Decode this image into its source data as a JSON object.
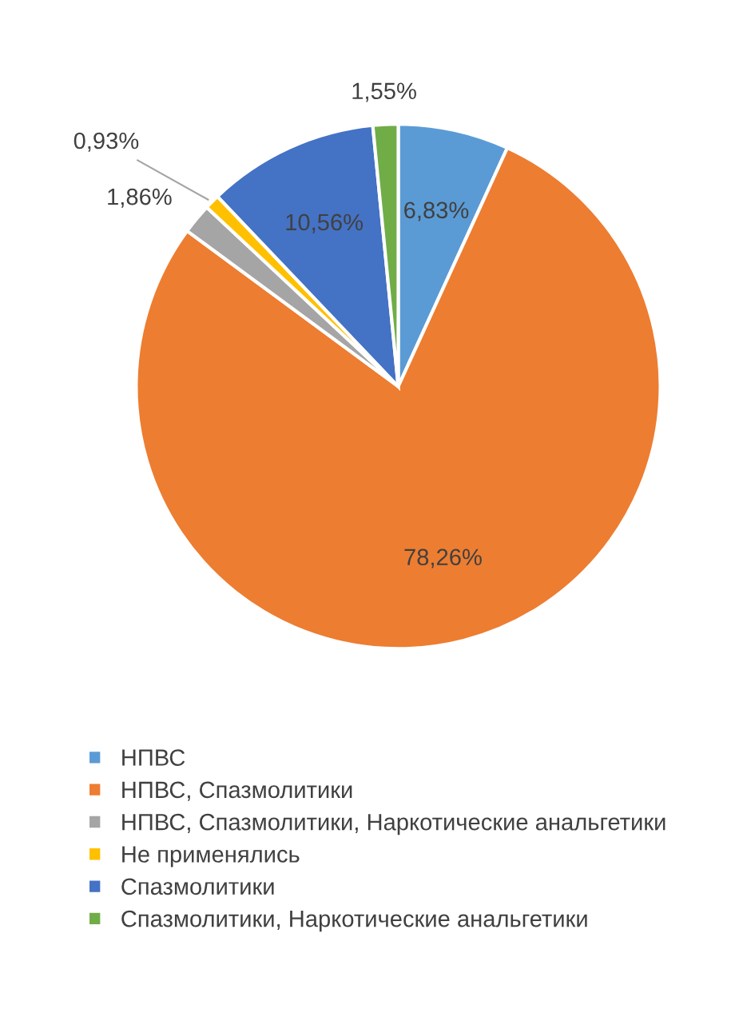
{
  "chart_data": {
    "type": "pie",
    "categories": [
      "НПВС",
      "НПВС, Спазмолитики",
      "НПВС, Спазмолитики, Наркотические анальгетики",
      "Не применялись",
      "Спазмолитики",
      "Спазмолитики, Наркотические анальгетики"
    ],
    "values": [
      6.83,
      78.26,
      1.86,
      0.93,
      10.56,
      1.55
    ],
    "value_labels": [
      "6,83%",
      "78,26%",
      "1,86%",
      "0,93%",
      "10,56%",
      "1,55%"
    ],
    "colors": [
      "#5b9bd5",
      "#ed7d31",
      "#a5a5a5",
      "#ffc000",
      "#4472c4",
      "#70ad47"
    ],
    "legend": "bottom"
  }
}
